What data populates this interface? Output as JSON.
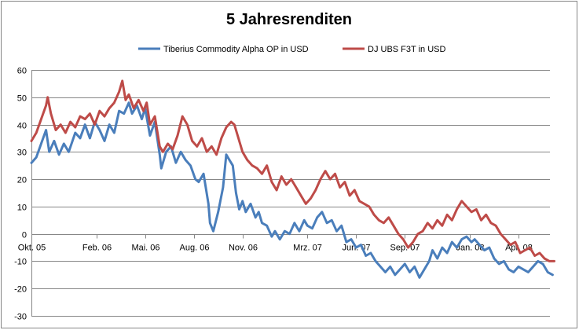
{
  "chart_data": {
    "type": "line",
    "title": "5 Jahresrenditen",
    "xlabel": "",
    "ylabel": "",
    "ylim": [
      -30,
      60
    ],
    "yticks": [
      -30,
      -20,
      -10,
      0,
      10,
      20,
      30,
      40,
      50,
      60
    ],
    "x_range_months": [
      0,
      30
    ],
    "xticks": [
      {
        "label": "Okt. 05",
        "month": 0
      },
      {
        "label": "Feb. 06",
        "month": 4
      },
      {
        "label": "Mai. 06",
        "month": 7
      },
      {
        "label": "Aug. 06",
        "month": 10
      },
      {
        "label": "Nov. 06",
        "month": 13
      },
      {
        "label": "Mrz. 07",
        "month": 17
      },
      {
        "label": "Jun. 07",
        "month": 20
      },
      {
        "label": "Sep. 07",
        "month": 23
      },
      {
        "label": "Jan. 08",
        "month": 27
      },
      {
        "label": "Apr. 08",
        "month": 30
      }
    ],
    "legend_position": "top",
    "series": [
      {
        "name": "Tiberius Commodity  Alpha OP in USD",
        "color": "#4a7ebb",
        "points": [
          [
            0,
            26
          ],
          [
            0.3,
            28
          ],
          [
            0.6,
            33
          ],
          [
            0.9,
            38
          ],
          [
            1.1,
            30
          ],
          [
            1.4,
            34
          ],
          [
            1.7,
            29
          ],
          [
            2.0,
            33
          ],
          [
            2.3,
            30
          ],
          [
            2.7,
            37
          ],
          [
            3.0,
            35
          ],
          [
            3.3,
            40
          ],
          [
            3.6,
            35
          ],
          [
            3.9,
            41
          ],
          [
            4.2,
            38
          ],
          [
            4.5,
            34
          ],
          [
            4.8,
            40
          ],
          [
            5.1,
            37
          ],
          [
            5.4,
            45
          ],
          [
            5.7,
            44
          ],
          [
            6.0,
            48
          ],
          [
            6.2,
            44
          ],
          [
            6.5,
            47
          ],
          [
            6.8,
            42
          ],
          [
            7.0,
            46
          ],
          [
            7.3,
            36
          ],
          [
            7.6,
            41
          ],
          [
            7.9,
            29
          ],
          [
            8.0,
            24
          ],
          [
            8.3,
            30
          ],
          [
            8.6,
            32
          ],
          [
            8.9,
            26
          ],
          [
            9.2,
            30
          ],
          [
            9.5,
            27
          ],
          [
            9.8,
            25
          ],
          [
            10.1,
            20
          ],
          [
            10.3,
            19
          ],
          [
            10.6,
            22
          ],
          [
            10.9,
            11
          ],
          [
            11.0,
            4
          ],
          [
            11.2,
            1
          ],
          [
            11.5,
            8
          ],
          [
            11.8,
            17
          ],
          [
            12.0,
            29
          ],
          [
            12.2,
            27
          ],
          [
            12.4,
            25
          ],
          [
            12.6,
            15
          ],
          [
            12.8,
            9
          ],
          [
            13.0,
            12
          ],
          [
            13.2,
            8
          ],
          [
            13.5,
            11
          ],
          [
            13.8,
            6
          ],
          [
            14.0,
            8
          ],
          [
            14.2,
            4
          ],
          [
            14.5,
            3
          ],
          [
            14.8,
            -1
          ],
          [
            15.0,
            1
          ],
          [
            15.3,
            -2
          ],
          [
            15.6,
            1
          ],
          [
            15.9,
            0
          ],
          [
            16.2,
            4
          ],
          [
            16.5,
            1
          ],
          [
            16.8,
            5
          ],
          [
            17.0,
            3
          ],
          [
            17.3,
            2
          ],
          [
            17.6,
            6
          ],
          [
            17.9,
            8
          ],
          [
            18.2,
            4
          ],
          [
            18.5,
            5
          ],
          [
            18.8,
            1
          ],
          [
            19.1,
            3
          ],
          [
            19.4,
            -3
          ],
          [
            19.7,
            -2
          ],
          [
            20.0,
            -5
          ],
          [
            20.3,
            -4
          ],
          [
            20.6,
            -8
          ],
          [
            20.9,
            -7
          ],
          [
            21.2,
            -10
          ],
          [
            21.5,
            -12
          ],
          [
            21.8,
            -14
          ],
          [
            22.1,
            -12
          ],
          [
            22.4,
            -15
          ],
          [
            22.7,
            -13
          ],
          [
            23.0,
            -11
          ],
          [
            23.3,
            -14
          ],
          [
            23.6,
            -12
          ],
          [
            23.9,
            -16
          ],
          [
            24.2,
            -13
          ],
          [
            24.5,
            -10
          ],
          [
            24.7,
            -6
          ],
          [
            25.0,
            -9
          ],
          [
            25.3,
            -5
          ],
          [
            25.6,
            -7
          ],
          [
            25.9,
            -3
          ],
          [
            26.2,
            -5
          ],
          [
            26.5,
            -2
          ],
          [
            26.8,
            -1
          ],
          [
            27.1,
            -3
          ],
          [
            27.3,
            -2
          ],
          [
            27.6,
            -4
          ],
          [
            27.9,
            -6
          ],
          [
            28.2,
            -5
          ],
          [
            28.5,
            -9
          ],
          [
            28.8,
            -11
          ],
          [
            29.1,
            -10
          ],
          [
            29.4,
            -13
          ],
          [
            29.7,
            -14
          ],
          [
            30.0,
            -12
          ],
          [
            30.3,
            -13
          ],
          [
            30.6,
            -14
          ],
          [
            30.9,
            -12
          ],
          [
            31.2,
            -10
          ],
          [
            31.5,
            -11
          ],
          [
            31.8,
            -14
          ],
          [
            32.1,
            -15
          ]
        ]
      },
      {
        "name": "DJ UBS  F3T in USD",
        "color": "#be4b48",
        "points": [
          [
            0,
            34
          ],
          [
            0.3,
            37
          ],
          [
            0.6,
            42
          ],
          [
            0.9,
            47
          ],
          [
            1.0,
            50
          ],
          [
            1.2,
            44
          ],
          [
            1.5,
            38
          ],
          [
            1.8,
            40
          ],
          [
            2.1,
            37
          ],
          [
            2.4,
            41
          ],
          [
            2.7,
            39
          ],
          [
            3.0,
            43
          ],
          [
            3.3,
            42
          ],
          [
            3.6,
            44
          ],
          [
            3.9,
            40
          ],
          [
            4.2,
            45
          ],
          [
            4.5,
            43
          ],
          [
            4.8,
            46
          ],
          [
            5.1,
            48
          ],
          [
            5.4,
            52
          ],
          [
            5.6,
            56
          ],
          [
            5.8,
            49
          ],
          [
            6.0,
            51
          ],
          [
            6.3,
            46
          ],
          [
            6.6,
            49
          ],
          [
            6.9,
            45
          ],
          [
            7.1,
            48
          ],
          [
            7.3,
            40
          ],
          [
            7.6,
            43
          ],
          [
            7.9,
            32
          ],
          [
            8.1,
            30
          ],
          [
            8.4,
            33
          ],
          [
            8.7,
            31
          ],
          [
            9.0,
            36
          ],
          [
            9.3,
            43
          ],
          [
            9.6,
            40
          ],
          [
            9.9,
            34
          ],
          [
            10.2,
            32
          ],
          [
            10.5,
            35
          ],
          [
            10.8,
            30
          ],
          [
            11.1,
            32
          ],
          [
            11.4,
            29
          ],
          [
            11.7,
            35
          ],
          [
            12.0,
            39
          ],
          [
            12.3,
            41
          ],
          [
            12.5,
            40
          ],
          [
            12.7,
            36
          ],
          [
            13.0,
            30
          ],
          [
            13.3,
            27
          ],
          [
            13.6,
            25
          ],
          [
            13.9,
            24
          ],
          [
            14.2,
            22
          ],
          [
            14.5,
            25
          ],
          [
            14.8,
            19
          ],
          [
            15.1,
            16
          ],
          [
            15.4,
            21
          ],
          [
            15.7,
            18
          ],
          [
            16.0,
            20
          ],
          [
            16.3,
            17
          ],
          [
            16.6,
            14
          ],
          [
            16.9,
            11
          ],
          [
            17.2,
            13
          ],
          [
            17.5,
            16
          ],
          [
            17.8,
            20
          ],
          [
            18.1,
            23
          ],
          [
            18.4,
            20
          ],
          [
            18.7,
            22
          ],
          [
            19.0,
            17
          ],
          [
            19.3,
            19
          ],
          [
            19.6,
            14
          ],
          [
            19.9,
            16
          ],
          [
            20.2,
            12
          ],
          [
            20.5,
            11
          ],
          [
            20.8,
            10
          ],
          [
            21.1,
            7
          ],
          [
            21.4,
            5
          ],
          [
            21.7,
            4
          ],
          [
            22.0,
            6
          ],
          [
            22.3,
            3
          ],
          [
            22.6,
            0
          ],
          [
            22.9,
            -2
          ],
          [
            23.2,
            -5
          ],
          [
            23.5,
            -3
          ],
          [
            23.8,
            0
          ],
          [
            24.1,
            1
          ],
          [
            24.4,
            4
          ],
          [
            24.7,
            2
          ],
          [
            25.0,
            5
          ],
          [
            25.3,
            3
          ],
          [
            25.6,
            7
          ],
          [
            25.9,
            5
          ],
          [
            26.2,
            9
          ],
          [
            26.5,
            12
          ],
          [
            26.8,
            10
          ],
          [
            27.1,
            8
          ],
          [
            27.4,
            9
          ],
          [
            27.7,
            5
          ],
          [
            28.0,
            7
          ],
          [
            28.3,
            4
          ],
          [
            28.6,
            3
          ],
          [
            28.9,
            0
          ],
          [
            29.2,
            -2
          ],
          [
            29.5,
            -4
          ],
          [
            29.8,
            -3
          ],
          [
            30.1,
            -7
          ],
          [
            30.4,
            -6
          ],
          [
            30.7,
            -5
          ],
          [
            31.0,
            -8
          ],
          [
            31.3,
            -7
          ],
          [
            31.6,
            -9
          ],
          [
            31.9,
            -10
          ],
          [
            32.2,
            -10
          ]
        ]
      }
    ]
  }
}
